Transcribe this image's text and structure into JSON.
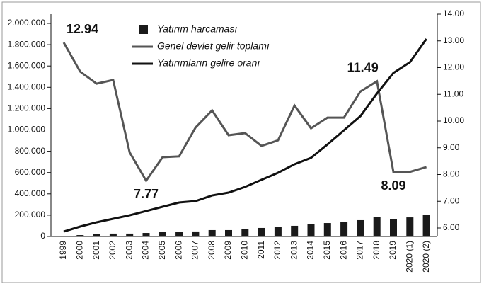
{
  "chart_data": {
    "type": "combo",
    "categories": [
      "1999",
      "2000",
      "2001",
      "2002",
      "2003",
      "2004",
      "2005",
      "2006",
      "2007",
      "2008",
      "2009",
      "2010",
      "2011",
      "2012",
      "2013",
      "2014",
      "2015",
      "2016",
      "2017",
      "2018",
      "2019",
      "2020 (1)",
      "2020 (2)"
    ],
    "series": [
      {
        "name": "Yatırım harcaması",
        "type": "bar",
        "color": "#1a1a1a",
        "axis": "y",
        "values": [
          3000,
          13000,
          20000,
          27000,
          27000,
          33000,
          40000,
          40000,
          47000,
          60000,
          60000,
          73000,
          80000,
          93000,
          100000,
          113000,
          126000,
          133000,
          153000,
          186000,
          166000,
          179000,
          206000
        ]
      },
      {
        "name": "Genel devlet gelir toplamı",
        "type": "line",
        "color": "#555555",
        "axis": "y2",
        "values": [
          12.94,
          11.85,
          11.4,
          11.54,
          8.83,
          7.77,
          8.65,
          8.68,
          9.76,
          10.4,
          9.47,
          9.55,
          9.07,
          9.28,
          10.58,
          9.73,
          10.13,
          10.13,
          11.11,
          11.49,
          8.09,
          8.1,
          8.28
        ],
        "value_labels": [
          "12.94",
          null,
          null,
          null,
          null,
          "7.77",
          null,
          null,
          null,
          null,
          null,
          null,
          null,
          null,
          null,
          null,
          null,
          null,
          null,
          "11.49",
          "8.09",
          null,
          null
        ]
      },
      {
        "name": "Yatırımların gelire oranı",
        "type": "line",
        "color": "#111111",
        "axis": "y",
        "values": [
          46000,
          93000,
          133000,
          166000,
          199000,
          239000,
          279000,
          319000,
          332000,
          385000,
          412000,
          465000,
          532000,
          598000,
          678000,
          738000,
          864000,
          997000,
          1130000,
          1342000,
          1535000,
          1635000,
          1854000
        ]
      }
    ],
    "ylim": [
      0,
      2000000
    ],
    "yticks": [
      0,
      {
        "value": 200000,
        "label": "200.000"
      },
      {
        "value": 400000,
        "label": "400.000"
      },
      {
        "value": 600000,
        "label": "600.000"
      },
      {
        "value": 800000,
        "label": "800.000"
      },
      {
        "value": 1000000,
        "label": "1.000.000"
      },
      {
        "value": 1200000,
        "label": "1.200.000"
      },
      {
        "value": 1400000,
        "label": "1.400.000"
      },
      {
        "value": 1600000,
        "label": "1.600.000"
      },
      {
        "value": 1800000,
        "label": "1.800.000"
      },
      {
        "value": 2000000,
        "label": "2.000.000"
      }
    ],
    "y2lim": [
      6,
      14
    ],
    "y2ticks": [
      {
        "value": 6,
        "label": "6.00"
      },
      {
        "value": 7,
        "label": "7.00"
      },
      {
        "value": 8,
        "label": "8.00"
      },
      {
        "value": 9,
        "label": "9.00"
      },
      {
        "value": 10,
        "label": "10.00"
      },
      {
        "value": 11,
        "label": "11.00"
      },
      {
        "value": 12,
        "label": "12.00"
      },
      {
        "value": 13,
        "label": "13.00"
      },
      {
        "value": 14,
        "label": "14.00"
      }
    ],
    "grid": false
  }
}
